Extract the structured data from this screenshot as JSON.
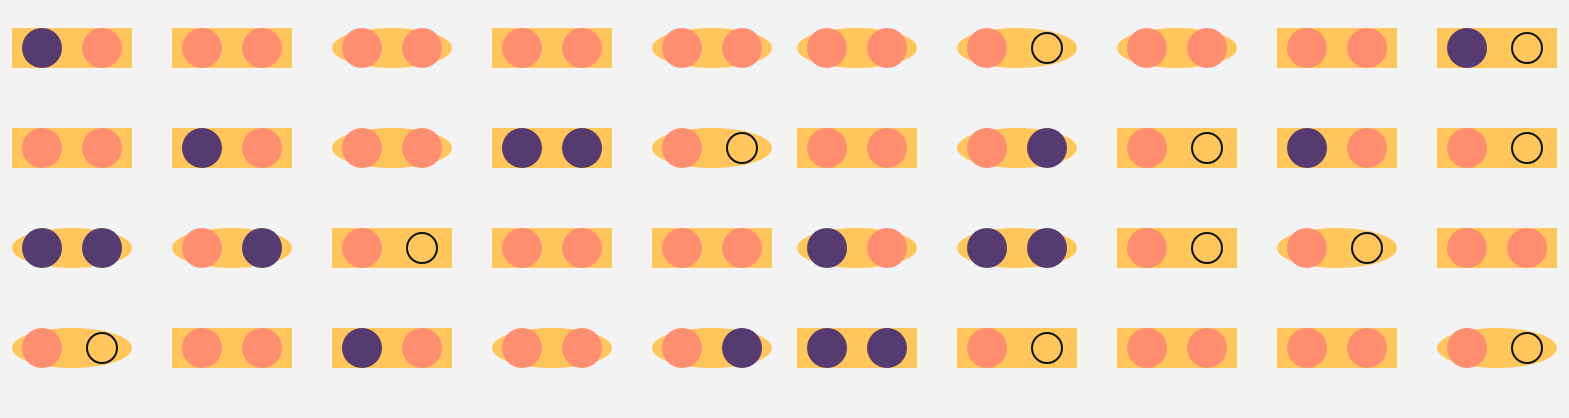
{
  "colors": {
    "background": "#f3f3f3",
    "base": "#ffc65c",
    "coral": "#ff8d70",
    "purple": "#563b70",
    "ring_fill": "#ffc65c",
    "ring_stroke": "#111111"
  },
  "legend": {
    "base_shapes": [
      "rect",
      "ellipse"
    ],
    "marker_types": [
      "coral",
      "purple",
      "ring"
    ]
  },
  "grid": {
    "rows": [
      {
        "items": [
          {
            "base": "rect",
            "markers": [
              "purple",
              "coral"
            ]
          },
          {
            "base": "rect",
            "markers": [
              "coral",
              "coral"
            ]
          },
          {
            "base": "ellipse",
            "markers": [
              "coral",
              "coral"
            ]
          },
          {
            "base": "rect",
            "markers": [
              "coral",
              "coral"
            ]
          },
          {
            "base": "ellipse",
            "markers": [
              "coral",
              "coral"
            ]
          },
          {
            "base": "ellipse",
            "markers": [
              "coral",
              "coral"
            ]
          },
          {
            "base": "ellipse",
            "markers": [
              "coral",
              "ring"
            ]
          },
          {
            "base": "ellipse",
            "markers": [
              "coral",
              "coral"
            ]
          },
          {
            "base": "rect",
            "markers": [
              "coral",
              "coral"
            ]
          },
          {
            "base": "rect",
            "markers": [
              "purple",
              "ring"
            ]
          }
        ]
      },
      {
        "items": [
          {
            "base": "rect",
            "markers": [
              "coral",
              "coral"
            ]
          },
          {
            "base": "rect",
            "markers": [
              "purple",
              "coral"
            ]
          },
          {
            "base": "ellipse",
            "markers": [
              "coral",
              "coral"
            ]
          },
          {
            "base": "rect",
            "markers": [
              "purple",
              "purple"
            ]
          },
          {
            "base": "ellipse",
            "markers": [
              "coral",
              "ring"
            ]
          },
          {
            "base": "rect",
            "markers": [
              "coral",
              "coral"
            ]
          },
          {
            "base": "ellipse",
            "markers": [
              "coral",
              "purple"
            ]
          },
          {
            "base": "rect",
            "markers": [
              "coral",
              "ring"
            ]
          },
          {
            "base": "rect",
            "markers": [
              "purple",
              "coral"
            ]
          },
          {
            "base": "rect",
            "markers": [
              "coral",
              "ring"
            ]
          }
        ]
      },
      {
        "items": [
          {
            "base": "ellipse",
            "markers": [
              "purple",
              "purple"
            ]
          },
          {
            "base": "ellipse",
            "markers": [
              "coral",
              "purple"
            ]
          },
          {
            "base": "rect",
            "markers": [
              "coral",
              "ring"
            ]
          },
          {
            "base": "rect",
            "markers": [
              "coral",
              "coral"
            ]
          },
          {
            "base": "rect",
            "markers": [
              "coral",
              "coral"
            ]
          },
          {
            "base": "ellipse",
            "markers": [
              "purple",
              "coral"
            ]
          },
          {
            "base": "ellipse",
            "markers": [
              "purple",
              "purple"
            ]
          },
          {
            "base": "rect",
            "markers": [
              "coral",
              "ring"
            ]
          },
          {
            "base": "ellipse",
            "markers": [
              "coral",
              "ring"
            ]
          },
          {
            "base": "rect",
            "markers": [
              "coral",
              "coral"
            ]
          }
        ]
      },
      {
        "items": [
          {
            "base": "ellipse",
            "markers": [
              "coral",
              "ring"
            ]
          },
          {
            "base": "rect",
            "markers": [
              "coral",
              "coral"
            ]
          },
          {
            "base": "rect",
            "markers": [
              "purple",
              "coral"
            ]
          },
          {
            "base": "ellipse",
            "markers": [
              "coral",
              "coral"
            ]
          },
          {
            "base": "ellipse",
            "markers": [
              "coral",
              "purple"
            ]
          },
          {
            "base": "rect",
            "markers": [
              "purple",
              "purple"
            ]
          },
          {
            "base": "rect",
            "markers": [
              "coral",
              "ring"
            ]
          },
          {
            "base": "rect",
            "markers": [
              "coral",
              "coral"
            ]
          },
          {
            "base": "rect",
            "markers": [
              "coral",
              "coral"
            ]
          },
          {
            "base": "ellipse",
            "markers": [
              "coral",
              "ring"
            ]
          }
        ]
      }
    ]
  }
}
